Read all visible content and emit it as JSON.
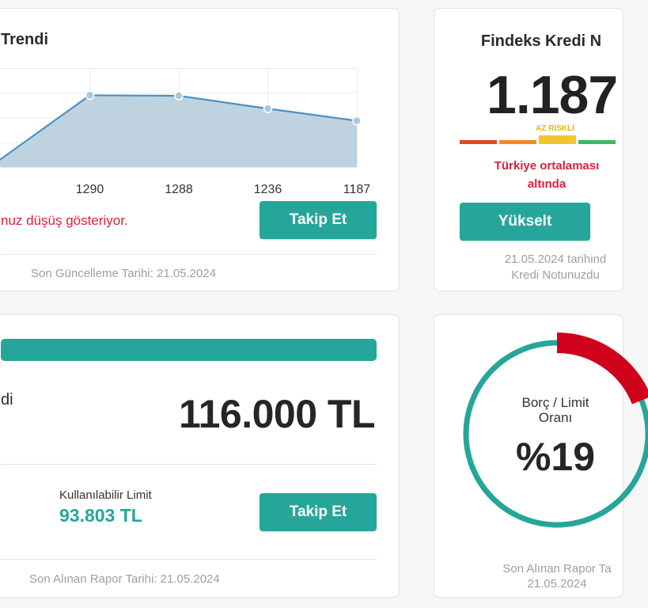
{
  "trend_card": {
    "title": "Trendi",
    "warning": "nuz düşüş gösteriyor.",
    "follow_button": "Takip Et",
    "updated": "Son Güncelleme Tarihi: 21.05.2024"
  },
  "chart_data": {
    "type": "area",
    "x": [
      "",
      "1290",
      "1288",
      "1236",
      "1187"
    ],
    "values": [
      1000,
      1290,
      1288,
      1236,
      1187
    ],
    "ylim": [
      1000,
      1400
    ],
    "grid": true,
    "colors": {
      "line": "#4a90c8",
      "fill": "#bfd2e0",
      "point": "#a9c6dd"
    }
  },
  "score_card": {
    "title": "Findeks Kredi N",
    "score": "1.187",
    "risk_label": "AZ RİSKLİ",
    "risk_colors": [
      "#e0462b",
      "#f08a24",
      "#f2c530",
      "#43b66a"
    ],
    "active_segment": 2,
    "compare_line1": "Türkiye ortalaması",
    "compare_line2": "altında",
    "upgrade_button": "Yükselt",
    "note_line1": "21.05.2024 tarihind",
    "note_line2": "Kredi Notunuzdu"
  },
  "limit_card": {
    "label": "di",
    "total": "116.000 TL",
    "available_label": "Kullanılabilir Limit",
    "available_value": "93.803 TL",
    "follow_button": "Takip Et",
    "report": "Son Alınan Rapor Tarihi: 21.05.2024"
  },
  "ratio_card": {
    "label_line1": "Borç / Limit",
    "label_line2": "Oranı",
    "value": "%19",
    "ratio_percent": 19,
    "colors": {
      "ring": "#26a69a",
      "used": "#d0021b"
    },
    "report_line1": "Son Alınan Rapor Ta",
    "report_line2": "21.05.2024"
  }
}
